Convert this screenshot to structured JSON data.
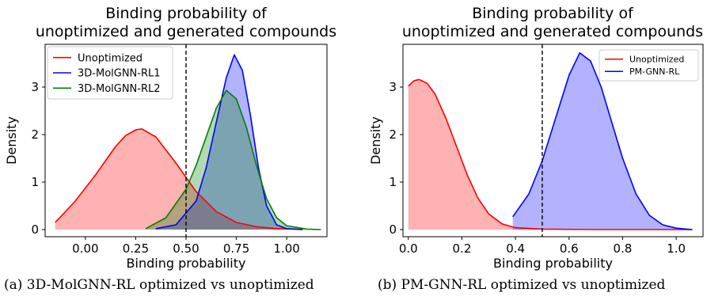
{
  "chart_data": [
    {
      "type": "area",
      "title": "Binding probability of\nunoptimized and generated compounds",
      "xlabel": "Binding probability",
      "ylabel": "Density",
      "xlim": [
        -0.2,
        1.2
      ],
      "ylim": [
        -0.15,
        3.9
      ],
      "xticks": [
        0.0,
        0.25,
        0.5,
        0.75,
        1.0
      ],
      "xtick_labels": [
        "0.00",
        "0.25",
        "0.50",
        "0.75",
        "1.00"
      ],
      "yticks": [
        0,
        1,
        2,
        3
      ],
      "ytick_labels": [
        "0",
        "1",
        "2",
        "3"
      ],
      "vline_x": 0.5,
      "legend": "top-left",
      "caption": "(a) 3D-MolGNN-RL optimized vs unoptimized",
      "series": [
        {
          "name": "Unoptimized",
          "color": "#ff0000",
          "x": [
            -0.15,
            -0.05,
            0.05,
            0.15,
            0.2,
            0.25,
            0.28,
            0.35,
            0.45,
            0.55,
            0.65,
            0.75,
            0.85,
            0.95,
            1.05
          ],
          "y": [
            0.15,
            0.6,
            1.15,
            1.75,
            1.98,
            2.1,
            2.12,
            1.95,
            1.4,
            0.8,
            0.38,
            0.15,
            0.06,
            0.02,
            0.01
          ]
        },
        {
          "name": "3D-MolGNN-RL1",
          "color": "#0000ff",
          "x": [
            0.35,
            0.45,
            0.55,
            0.6,
            0.65,
            0.7,
            0.74,
            0.78,
            0.82,
            0.86,
            0.9,
            0.95,
            1.0,
            1.08
          ],
          "y": [
            0.02,
            0.1,
            0.6,
            1.3,
            2.25,
            3.2,
            3.68,
            3.35,
            2.4,
            1.3,
            0.5,
            0.1,
            0.02,
            0.0
          ]
        },
        {
          "name": "3D-MolGNN-RL2",
          "color": "#008000",
          "x": [
            0.3,
            0.4,
            0.5,
            0.55,
            0.6,
            0.65,
            0.7,
            0.75,
            0.8,
            0.85,
            0.9,
            0.95,
            1.0,
            1.1,
            1.17
          ],
          "y": [
            0.02,
            0.25,
            0.85,
            1.35,
            1.95,
            2.55,
            2.93,
            2.75,
            2.15,
            1.35,
            0.65,
            0.25,
            0.08,
            0.01,
            0.0
          ]
        }
      ]
    },
    {
      "type": "area",
      "title": "Binding probability of\nunoptimized and generated compounds",
      "xlabel": "Binding probability",
      "ylabel": "Density",
      "xlim": [
        -0.02,
        1.1
      ],
      "ylim": [
        -0.15,
        3.9
      ],
      "xticks": [
        0.0,
        0.2,
        0.4,
        0.6,
        0.8,
        1.0
      ],
      "xtick_labels": [
        "0.0",
        "0.2",
        "0.4",
        "0.6",
        "0.8",
        "1.0"
      ],
      "yticks": [
        0,
        1,
        2,
        3
      ],
      "ytick_labels": [
        "0",
        "1",
        "2",
        "3"
      ],
      "vline_x": 0.5,
      "legend": "top-right",
      "caption": "(b) PM-GNN-RL optimized vs unoptimized",
      "series": [
        {
          "name": "Unoptimized",
          "color": "#ff0000",
          "x": [
            0.0,
            0.02,
            0.04,
            0.07,
            0.1,
            0.14,
            0.18,
            0.22,
            0.26,
            0.3,
            0.35,
            0.4,
            0.5,
            0.7,
            1.06
          ],
          "y": [
            3.02,
            3.13,
            3.16,
            3.08,
            2.85,
            2.35,
            1.75,
            1.15,
            0.66,
            0.33,
            0.12,
            0.04,
            0.01,
            0.0,
            0.0
          ]
        },
        {
          "name": "PM-GNN-RL",
          "color": "#0000ff",
          "x": [
            0.39,
            0.45,
            0.5,
            0.55,
            0.6,
            0.64,
            0.68,
            0.72,
            0.76,
            0.8,
            0.85,
            0.9,
            0.95,
            1.0,
            1.06
          ],
          "y": [
            0.27,
            0.75,
            1.45,
            2.35,
            3.25,
            3.72,
            3.55,
            3.0,
            2.25,
            1.5,
            0.75,
            0.3,
            0.1,
            0.03,
            0.0
          ]
        }
      ]
    }
  ]
}
